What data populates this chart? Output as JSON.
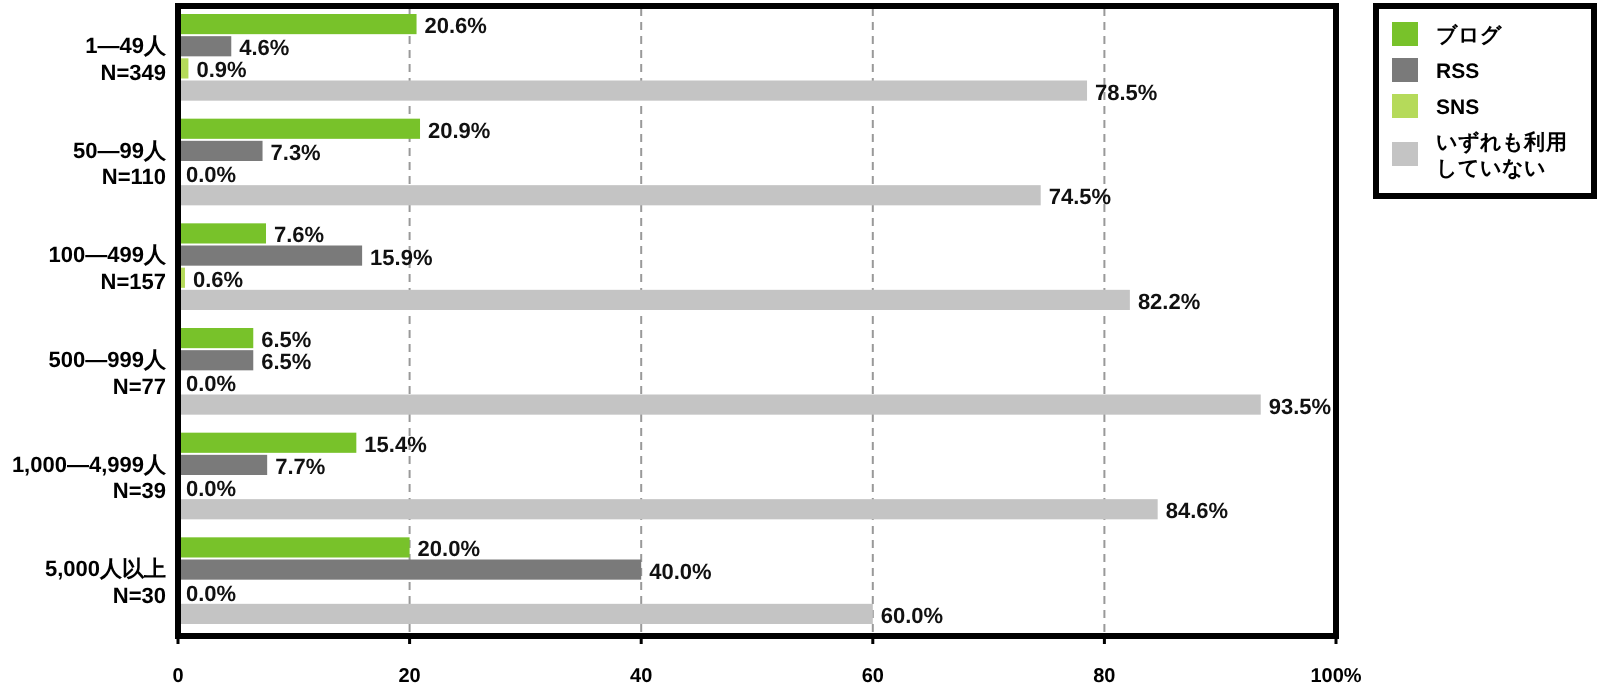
{
  "chart_data": {
    "type": "bar",
    "orientation": "horizontal",
    "categories": [
      "1—49人\nN=349",
      "50—99人\nN=110",
      "100—499人\nN=157",
      "500—999人\nN=77",
      "1,000—4,999人\nN=39",
      "5,000人以上\nN=30"
    ],
    "series": [
      {
        "name": "ブログ",
        "color": "#78c22a",
        "values": [
          20.6,
          20.9,
          7.6,
          6.5,
          15.4,
          20.0
        ],
        "value_labels": [
          "20.6%",
          "20.9%",
          "7.6%",
          "6.5%",
          "15.4%",
          "20.0%"
        ]
      },
      {
        "name": "RSS",
        "color": "#7a7a7a",
        "values": [
          4.6,
          7.3,
          15.9,
          6.5,
          7.7,
          40.0
        ],
        "value_labels": [
          "4.6%",
          "7.3%",
          "15.9%",
          "6.5%",
          "7.7%",
          "40.0%"
        ]
      },
      {
        "name": "SNS",
        "color": "#b5da5a",
        "values": [
          0.9,
          0.0,
          0.6,
          0.0,
          0.0,
          0.0
        ],
        "value_labels": [
          "0.9%",
          "0.0%",
          "0.6%",
          "0.0%",
          "0.0%",
          "0.0%"
        ]
      },
      {
        "name": "いずれも利用していない",
        "color": "#c4c4c4",
        "values": [
          78.5,
          74.5,
          82.2,
          93.5,
          84.6,
          60.0
        ],
        "value_labels": [
          "78.5%",
          "74.5%",
          "82.2%",
          "93.5%",
          "84.6%",
          "60.0%"
        ]
      }
    ],
    "xlim": [
      0,
      100
    ],
    "xticks": [
      0,
      20,
      40,
      60,
      80,
      {
        "value": 100,
        "label": "100%"
      }
    ],
    "grid": "x",
    "legend": "right"
  }
}
